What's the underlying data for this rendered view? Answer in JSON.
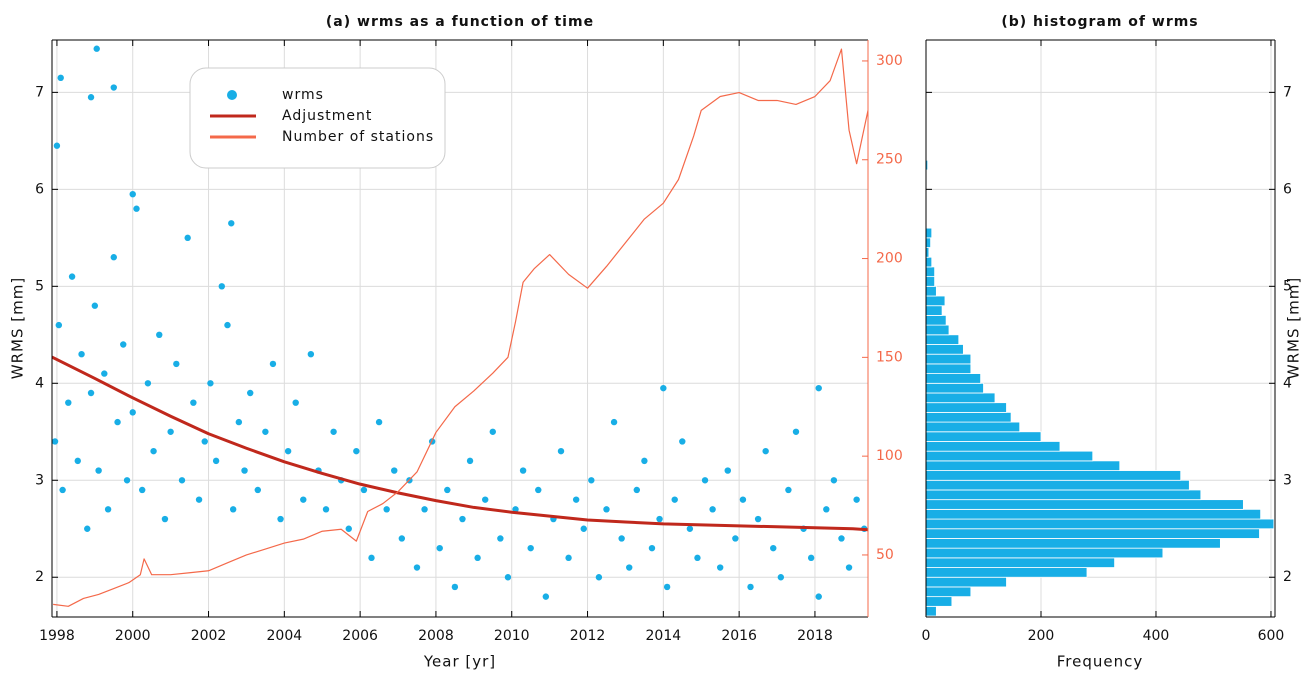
{
  "chart_data": [
    {
      "type": "scatter",
      "title": "(a) wrms as a function of time",
      "xlabel": "Year [yr]",
      "ylabel": "WRMS [mm]",
      "xlim": [
        1997.87,
        2019.4
      ],
      "xticks": [
        1998,
        2000,
        2002,
        2004,
        2006,
        2008,
        2010,
        2012,
        2014,
        2016,
        2018
      ],
      "ylim": [
        1.59,
        7.54
      ],
      "yticks": [
        2,
        3,
        4,
        5,
        6,
        7
      ],
      "y2lim": [
        18.6,
        310.6
      ],
      "y2ticks": [
        50,
        100,
        150,
        200,
        250,
        300
      ],
      "grid": true,
      "legend": "upper left",
      "series": [
        {
          "name": "wrms",
          "type": "scatter",
          "color": "#18aee6",
          "x": [
            1997.95,
            1998.05,
            1998.15,
            1998.3,
            1998.4,
            1998.55,
            1998.65,
            1998.8,
            1998.9,
            1999.0,
            1999.1,
            1999.25,
            1999.35,
            1999.5,
            1999.6,
            1999.75,
            1999.85,
            2000.0,
            2000.1,
            2000.25,
            2000.4,
            2000.55,
            2000.7,
            2000.85,
            2001.0,
            2001.15,
            2001.3,
            2001.45,
            2001.6,
            2001.75,
            2001.9,
            2002.05,
            2002.2,
            2002.35,
            2002.5,
            2002.65,
            2002.8,
            2002.95,
            2003.1,
            2003.3,
            2003.5,
            2003.7,
            2003.9,
            2004.1,
            2004.3,
            2004.5,
            2004.7,
            2004.9,
            2005.1,
            2005.3,
            2005.5,
            2005.7,
            2005.9,
            2006.1,
            2006.3,
            2006.5,
            2006.7,
            2006.9,
            2007.1,
            2007.3,
            2007.5,
            2007.7,
            2007.9,
            2008.1,
            2008.3,
            2008.5,
            2008.7,
            2008.9,
            2009.1,
            2009.3,
            2009.5,
            2009.7,
            2009.9,
            2010.1,
            2010.3,
            2010.5,
            2010.7,
            2010.9,
            2011.1,
            2011.3,
            2011.5,
            2011.7,
            2011.9,
            2012.1,
            2012.3,
            2012.5,
            2012.7,
            2012.9,
            2013.1,
            2013.3,
            2013.5,
            2013.7,
            2013.9,
            2014.1,
            2014.3,
            2014.5,
            2014.7,
            2014.9,
            2015.1,
            2015.3,
            2015.5,
            2015.7,
            2015.9,
            2016.1,
            2016.3,
            2016.5,
            2016.7,
            2016.9,
            2017.1,
            2017.3,
            2017.5,
            2017.7,
            2017.9,
            2018.1,
            2018.3,
            2018.5,
            2018.7,
            2018.9,
            2019.1,
            2019.3,
            1998.1,
            1999.05,
            1999.5,
            1998.9,
            2000.0,
            1998.0,
            2002.6,
            2014.0,
            2018.1
          ],
          "values": [
            3.4,
            4.6,
            2.9,
            3.8,
            5.1,
            3.2,
            4.3,
            2.5,
            3.9,
            4.8,
            3.1,
            4.1,
            2.7,
            5.3,
            3.6,
            4.4,
            3.0,
            3.7,
            5.8,
            2.9,
            4.0,
            3.3,
            4.5,
            2.6,
            3.5,
            4.2,
            3.0,
            5.5,
            3.8,
            2.8,
            3.4,
            4.0,
            3.2,
            5.0,
            4.6,
            2.7,
            3.6,
            3.1,
            3.9,
            2.9,
            3.5,
            4.2,
            2.6,
            3.3,
            3.8,
            2.8,
            4.3,
            3.1,
            2.7,
            3.5,
            3.0,
            2.5,
            3.3,
            2.9,
            2.2,
            3.6,
            2.7,
            3.1,
            2.4,
            3.0,
            2.1,
            2.7,
            3.4,
            2.3,
            2.9,
            1.9,
            2.6,
            3.2,
            2.2,
            2.8,
            3.5,
            2.4,
            2.0,
            2.7,
            3.1,
            2.3,
            2.9,
            1.8,
            2.6,
            3.3,
            2.2,
            2.8,
            2.5,
            3.0,
            2.0,
            2.7,
            3.6,
            2.4,
            2.1,
            2.9,
            3.2,
            2.3,
            2.6,
            1.9,
            2.8,
            3.4,
            2.5,
            2.2,
            3.0,
            2.7,
            2.1,
            3.1,
            2.4,
            2.8,
            1.9,
            2.6,
            3.3,
            2.3,
            2.0,
            2.9,
            3.5,
            2.5,
            2.2,
            1.8,
            2.7,
            3.0,
            2.4,
            2.1,
            2.8,
            2.5,
            7.15,
            7.45,
            7.05,
            6.95,
            5.95,
            6.45,
            5.65,
            3.95,
            3.95
          ]
        },
        {
          "name": "Adjustment",
          "type": "line",
          "color": "#c0281c",
          "x": [
            1997.87,
            1999,
            2000,
            2001,
            2002,
            2003,
            2004,
            2005,
            2006,
            2007,
            2008,
            2009,
            2010,
            2011,
            2012,
            2013,
            2014,
            2015,
            2016,
            2017,
            2018,
            2019,
            2019.4
          ],
          "values": [
            4.27,
            4.05,
            3.85,
            3.66,
            3.48,
            3.33,
            3.19,
            3.07,
            2.96,
            2.87,
            2.79,
            2.72,
            2.67,
            2.63,
            2.59,
            2.57,
            2.55,
            2.54,
            2.53,
            2.52,
            2.51,
            2.5,
            2.49
          ]
        },
        {
          "name": "Number of stations",
          "type": "line",
          "color": "#f4694a",
          "axis": "y2",
          "x": [
            1997.9,
            1998.3,
            1998.7,
            1999.1,
            1999.5,
            1999.9,
            2000.2,
            2000.3,
            2000.5,
            2001.0,
            2001.5,
            2002.0,
            2002.5,
            2003.0,
            2003.5,
            2004.0,
            2004.5,
            2005.0,
            2005.5,
            2005.9,
            2006.2,
            2006.6,
            2007.0,
            2007.5,
            2008.0,
            2008.5,
            2009.0,
            2009.5,
            2009.9,
            2010.1,
            2010.3,
            2010.6,
            2011.0,
            2011.5,
            2012.0,
            2012.5,
            2013.0,
            2013.5,
            2014.0,
            2014.4,
            2014.8,
            2015.0,
            2015.5,
            2016.0,
            2016.5,
            2017.0,
            2017.5,
            2018.0,
            2018.4,
            2018.7,
            2018.9,
            2019.1,
            2019.4
          ],
          "values": [
            25,
            24,
            28,
            30,
            33,
            36,
            40,
            48,
            40,
            40,
            41,
            42,
            46,
            50,
            53,
            56,
            58,
            62,
            63,
            57,
            72,
            76,
            82,
            92,
            112,
            125,
            133,
            142,
            150,
            168,
            188,
            195,
            202,
            192,
            185,
            196,
            208,
            220,
            228,
            240,
            262,
            275,
            282,
            284,
            280,
            280,
            278,
            282,
            290,
            306,
            265,
            248,
            275
          ]
        }
      ]
    },
    {
      "type": "histogram",
      "title": "(b) histogram of wrms",
      "xlabel": "Frequency",
      "ylabel": "WRMS [mm]",
      "color": "#18aee6",
      "xlim": [
        0,
        607
      ],
      "xticks": [
        0,
        200,
        400,
        600
      ],
      "ylim": [
        1.59,
        7.54
      ],
      "yticks": [
        2,
        3,
        4,
        5,
        6,
        7
      ],
      "grid": true,
      "bins": [
        1.6,
        1.7,
        1.8,
        1.9,
        2.0,
        2.1,
        2.2,
        2.3,
        2.4,
        2.5,
        2.6,
        2.7,
        2.8,
        2.9,
        3.0,
        3.1,
        3.2,
        3.3,
        3.4,
        3.5,
        3.6,
        3.7,
        3.8,
        3.9,
        4.0,
        4.1,
        4.2,
        4.3,
        4.4,
        4.5,
        4.6,
        4.7,
        4.8,
        4.9,
        5.0,
        5.1,
        5.2,
        5.3,
        5.4,
        5.5,
        5.6,
        5.7,
        5.8,
        5.9,
        6.0,
        6.1,
        6.2,
        6.3
      ],
      "values": [
        18,
        45,
        78,
        140,
        280,
        328,
        412,
        512,
        580,
        605,
        582,
        552,
        478,
        458,
        443,
        337,
        290,
        233,
        200,
        163,
        148,
        140,
        120,
        100,
        95,
        78,
        78,
        65,
        57,
        40,
        35,
        28,
        33,
        18,
        15,
        15,
        10,
        5,
        8,
        10,
        0,
        0,
        0,
        0,
        0,
        0,
        3
      ]
    }
  ]
}
